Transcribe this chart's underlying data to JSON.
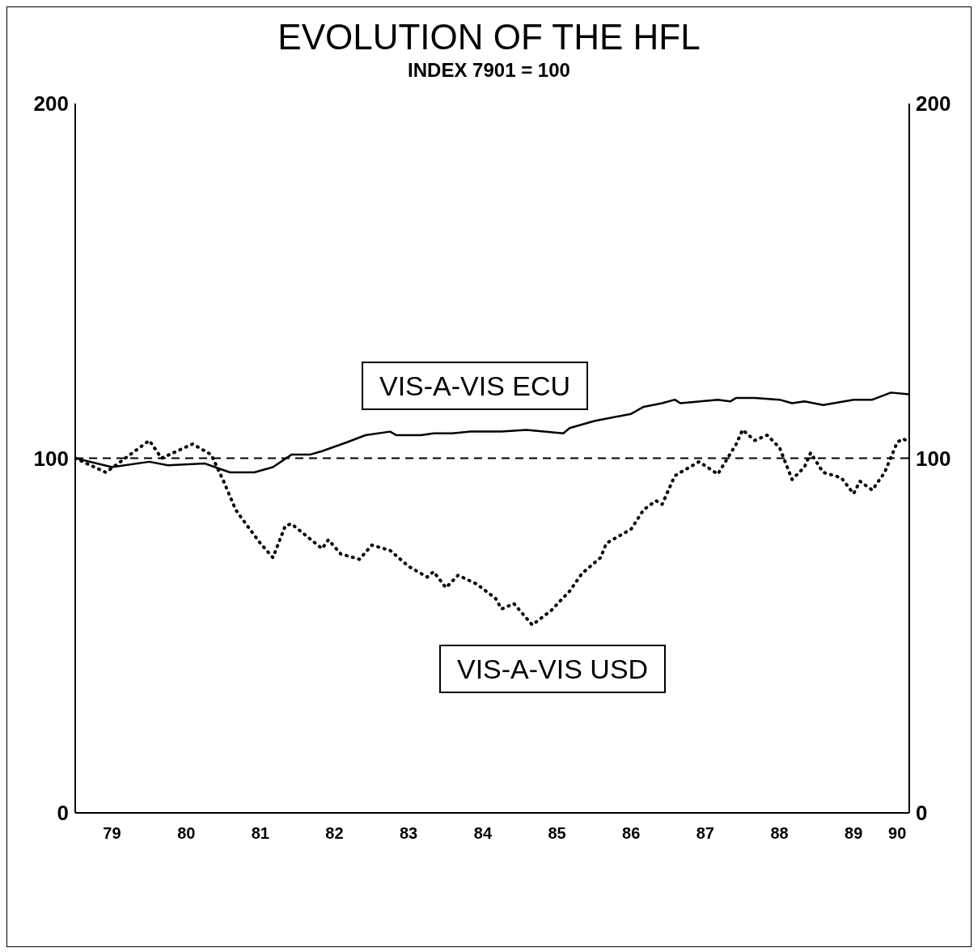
{
  "chart_data": {
    "type": "line",
    "title": "EVOLUTION OF THE HFL",
    "subtitle": "INDEX 7901 = 100",
    "xlim": [
      "1979-01",
      "1990-04"
    ],
    "xticks": [
      {
        "value": "1979-07",
        "label": "79"
      },
      {
        "value": "1980-07",
        "label": "80"
      },
      {
        "value": "1981-07",
        "label": "81"
      },
      {
        "value": "1982-07",
        "label": "82"
      },
      {
        "value": "1983-07",
        "label": "83"
      },
      {
        "value": "1984-07",
        "label": "84"
      },
      {
        "value": "1985-07",
        "label": "85"
      },
      {
        "value": "1986-07",
        "label": "86"
      },
      {
        "value": "1987-07",
        "label": "87"
      },
      {
        "value": "1988-07",
        "label": "88"
      },
      {
        "value": "1989-07",
        "label": "89"
      },
      {
        "value": "1990-02",
        "label": "90"
      }
    ],
    "ylim": [
      0,
      200
    ],
    "yticks": [
      0,
      100,
      200
    ],
    "y2lim": [
      0,
      200
    ],
    "y2ticks": [
      0,
      100,
      200
    ],
    "marker": "none",
    "ref_lines": [
      {
        "axis": "y",
        "value": 100,
        "line_style": "dashed",
        "color": "#000000"
      }
    ],
    "series": [
      {
        "name": "VIS-A-VIS ECU",
        "color": "#000000",
        "line_style": "solid",
        "x": [
          "1979-01",
          "1979-07",
          "1980-01",
          "1980-04",
          "1980-10",
          "1981-02",
          "1981-06",
          "1981-09",
          "1981-12",
          "1982-03",
          "1982-05",
          "1982-09",
          "1982-12",
          "1983-04",
          "1983-05",
          "1983-09",
          "1983-11",
          "1984-02",
          "1984-05",
          "1984-10",
          "1985-02",
          "1985-08",
          "1985-09",
          "1986-01",
          "1986-07",
          "1986-09",
          "1986-12",
          "1987-02",
          "1987-03",
          "1987-09",
          "1987-11",
          "1987-12",
          "1988-03",
          "1988-07",
          "1988-09",
          "1988-11",
          "1989-02",
          "1989-07",
          "1989-10",
          "1990-01",
          "1990-04"
        ],
        "values": [
          100,
          97.5,
          99,
          98,
          98.5,
          96,
          96,
          97.5,
          101,
          101,
          102,
          104.5,
          106.5,
          107.5,
          106.5,
          106.5,
          107,
          107,
          107.5,
          107.5,
          108,
          107,
          108.5,
          110.5,
          112.5,
          114.5,
          115.5,
          116.5,
          115.5,
          116.5,
          116,
          117,
          117,
          116.5,
          115.5,
          116,
          115,
          116.5,
          116.5,
          118.5,
          118
        ]
      },
      {
        "name": "VIS-A-VIS USD",
        "color": "#000000",
        "line_style": "dotted",
        "x": [
          "1979-01",
          "1979-06",
          "1980-01",
          "1980-03",
          "1980-08",
          "1980-11",
          "1981-01",
          "1981-03",
          "1981-04",
          "1981-07",
          "1981-09",
          "1981-11",
          "1981-12",
          "1982-05",
          "1982-06",
          "1982-08",
          "1982-11",
          "1983-01",
          "1983-04",
          "1983-07",
          "1983-10",
          "1983-11",
          "1984-01",
          "1984-03",
          "1984-06",
          "1984-09",
          "1984-10",
          "1984-12",
          "1985-03",
          "1985-06",
          "1985-09",
          "1985-11",
          "1986-02",
          "1986-03",
          "1986-05",
          "1986-07",
          "1986-09",
          "1986-11",
          "1986-12",
          "1987-01",
          "1987-02",
          "1987-03",
          "1987-06",
          "1987-09",
          "1987-12",
          "1988-01",
          "1988-03",
          "1988-05",
          "1988-07",
          "1988-09",
          "1988-11",
          "1988-12",
          "1989-02",
          "1989-05",
          "1989-07",
          "1989-08",
          "1989-10",
          "1989-12",
          "1990-02",
          "1990-03",
          "1990-04"
        ],
        "values": [
          100,
          96,
          105,
          100,
          104,
          101,
          93.5,
          85.5,
          83,
          76,
          72,
          81,
          81.5,
          74.5,
          77,
          73,
          71.5,
          75.5,
          74,
          69.5,
          66.5,
          68,
          63.5,
          67,
          64.5,
          60.5,
          57.5,
          59,
          53,
          57,
          62.5,
          67.5,
          72,
          76,
          78,
          80,
          85.5,
          88,
          87,
          91,
          95,
          96,
          99,
          95.5,
          104,
          108,
          105,
          106.5,
          103,
          94,
          97.5,
          101.5,
          96,
          94.5,
          90,
          93.5,
          91,
          96,
          104.5,
          105.5,
          104.5
        ]
      }
    ]
  }
}
